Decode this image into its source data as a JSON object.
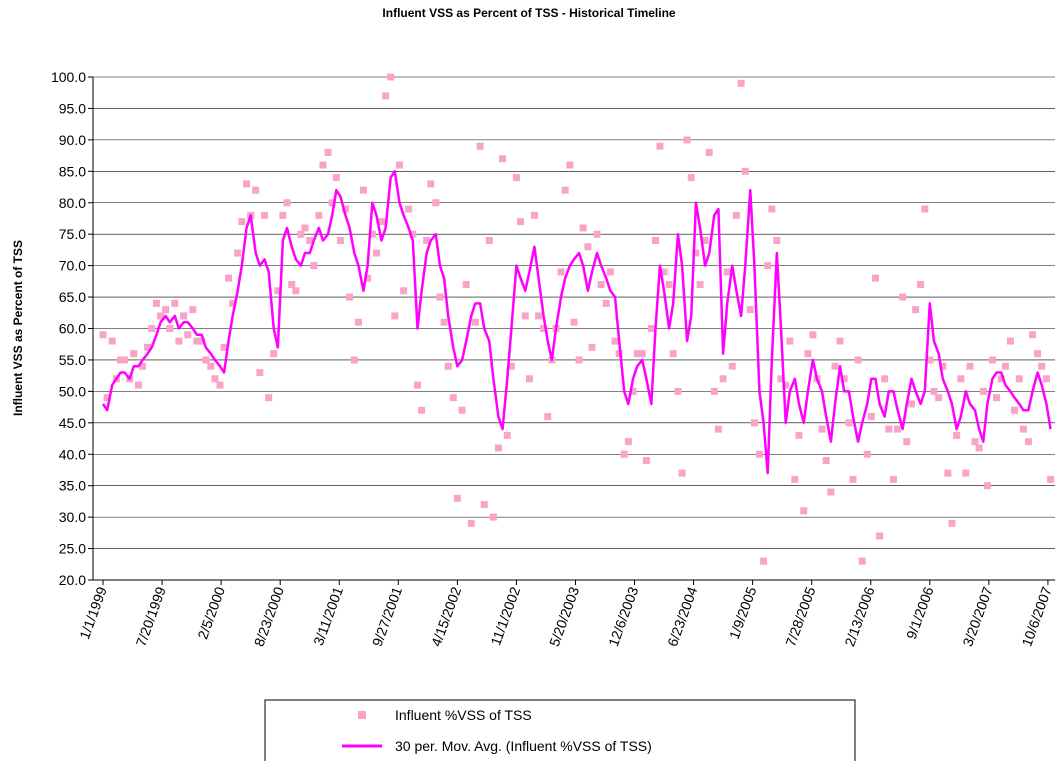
{
  "chart_data": {
    "type": "scatter",
    "title": "Influent VSS as Percent of TSS - Historical Timeline",
    "y_label": "Influent VSS as Percent of TSS",
    "grid": true,
    "legend": "bottom",
    "ylim": [
      20,
      100
    ],
    "yticks": [
      {
        "value": 20,
        "label": "20.0"
      },
      {
        "value": 25,
        "label": "25.0"
      },
      {
        "value": 30,
        "label": "30.0"
      },
      {
        "value": 35,
        "label": "35.0"
      },
      {
        "value": 40,
        "label": "40.0"
      },
      {
        "value": 45,
        "label": "45.0"
      },
      {
        "value": 50,
        "label": "50.0"
      },
      {
        "value": 55,
        "label": "55.0"
      },
      {
        "value": 60,
        "label": "60.0"
      },
      {
        "value": 65,
        "label": "65.0"
      },
      {
        "value": 70,
        "label": "70.0"
      },
      {
        "value": 75,
        "label": "75.0"
      },
      {
        "value": 80,
        "label": "80.0"
      },
      {
        "value": 85,
        "label": "85.0"
      },
      {
        "value": 90,
        "label": "90.0"
      },
      {
        "value": 95,
        "label": "95.0"
      },
      {
        "value": 100,
        "label": "100.0"
      }
    ],
    "xlim": [
      "11/28/1998",
      "10/30/2007"
    ],
    "xticks": [
      "1/1/1999",
      "7/20/1999",
      "2/5/2000",
      "8/23/2000",
      "3/11/2001",
      "9/27/2001",
      "4/15/2002",
      "11/1/2002",
      "5/20/2003",
      "12/6/2003",
      "6/23/2004",
      "1/9/2005",
      "7/28/2005",
      "2/13/2006",
      "9/1/2006",
      "3/20/2007",
      "10/6/2007"
    ],
    "x": [
      "1/1/1999",
      "1/15/1999",
      "2/1/1999",
      "2/15/1999",
      "3/1/1999",
      "3/15/1999",
      "4/1/1999",
      "4/15/1999",
      "5/1/1999",
      "5/15/1999",
      "6/1/1999",
      "6/15/1999",
      "7/1/1999",
      "7/15/1999",
      "8/1/1999",
      "8/15/1999",
      "9/1/1999",
      "9/15/1999",
      "10/1/1999",
      "10/15/1999",
      "11/1/1999",
      "11/15/1999",
      "12/1/1999",
      "12/15/1999",
      "1/1/2000",
      "1/15/2000",
      "2/1/2000",
      "2/15/2000",
      "3/1/2000",
      "3/15/2000",
      "4/1/2000",
      "4/15/2000",
      "5/1/2000",
      "5/15/2000",
      "6/1/2000",
      "6/15/2000",
      "7/1/2000",
      "7/15/2000",
      "8/1/2000",
      "8/15/2000",
      "9/1/2000",
      "9/15/2000",
      "10/1/2000",
      "10/15/2000",
      "11/1/2000",
      "11/15/2000",
      "12/1/2000",
      "12/15/2000",
      "1/1/2001",
      "1/15/2001",
      "2/1/2001",
      "2/15/2001",
      "3/1/2001",
      "3/15/2001",
      "4/1/2001",
      "4/15/2001",
      "5/1/2001",
      "5/15/2001",
      "6/1/2001",
      "6/15/2001",
      "7/1/2001",
      "7/15/2001",
      "8/1/2001",
      "8/15/2001",
      "9/1/2001",
      "9/15/2001",
      "10/1/2001",
      "10/15/2001",
      "11/1/2001",
      "11/15/2001",
      "12/1/2001",
      "12/15/2001",
      "1/1/2002",
      "1/15/2002",
      "2/1/2002",
      "2/15/2002",
      "3/1/2002",
      "3/15/2002",
      "4/1/2002",
      "4/15/2002",
      "5/1/2002",
      "5/15/2002",
      "6/1/2002",
      "6/15/2002",
      "7/1/2002",
      "7/15/2002",
      "8/1/2002",
      "8/15/2002",
      "9/1/2002",
      "9/15/2002",
      "10/1/2002",
      "10/15/2002",
      "11/1/2002",
      "11/15/2002",
      "12/1/2002",
      "12/15/2002",
      "1/1/2003",
      "1/15/2003",
      "2/1/2003",
      "2/15/2003",
      "3/1/2003",
      "3/15/2003",
      "4/1/2003",
      "4/15/2003",
      "5/1/2003",
      "5/15/2003",
      "6/1/2003",
      "6/15/2003",
      "7/1/2003",
      "7/15/2003",
      "8/1/2003",
      "8/15/2003",
      "9/1/2003",
      "9/15/2003",
      "10/1/2003",
      "10/15/2003",
      "11/1/2003",
      "11/15/2003",
      "12/1/2003",
      "12/15/2003",
      "1/1/2004",
      "1/15/2004",
      "2/1/2004",
      "2/15/2004",
      "3/1/2004",
      "3/15/2004",
      "4/1/2004",
      "4/15/2004",
      "5/1/2004",
      "5/15/2004",
      "6/1/2004",
      "6/15/2004",
      "7/1/2004",
      "7/15/2004",
      "8/1/2004",
      "8/15/2004",
      "9/1/2004",
      "9/15/2004",
      "10/1/2004",
      "10/15/2004",
      "11/1/2004",
      "11/15/2004",
      "12/1/2004",
      "12/15/2004",
      "1/1/2005",
      "1/15/2005",
      "2/1/2005",
      "2/15/2005",
      "3/1/2005",
      "3/15/2005",
      "4/1/2005",
      "4/15/2005",
      "5/1/2005",
      "5/15/2005",
      "6/1/2005",
      "6/15/2005",
      "7/1/2005",
      "7/15/2005",
      "8/1/2005",
      "8/15/2005",
      "9/1/2005",
      "9/15/2005",
      "10/1/2005",
      "10/15/2005",
      "11/1/2005",
      "11/15/2005",
      "12/1/2005",
      "12/15/2005",
      "1/1/2006",
      "1/15/2006",
      "2/1/2006",
      "2/15/2006",
      "3/1/2006",
      "3/15/2006",
      "4/1/2006",
      "4/15/2006",
      "5/1/2006",
      "5/15/2006",
      "6/1/2006",
      "6/15/2006",
      "7/1/2006",
      "7/15/2006",
      "8/1/2006",
      "8/15/2006",
      "9/1/2006",
      "9/15/2006",
      "10/1/2006",
      "10/15/2006",
      "11/1/2006",
      "11/15/2006",
      "12/1/2006",
      "12/15/2006",
      "1/1/2007",
      "1/15/2007",
      "2/1/2007",
      "2/15/2007",
      "3/1/2007",
      "3/15/2007",
      "4/1/2007",
      "4/15/2007",
      "5/1/2007",
      "5/15/2007",
      "6/1/2007",
      "6/15/2007",
      "7/1/2007",
      "7/15/2007",
      "8/1/2007",
      "8/15/2007",
      "9/1/2007",
      "9/15/2007",
      "10/1/2007",
      "10/15/2007"
    ],
    "series": [
      {
        "name": "Influent %VSS of TSS",
        "type": "scatter",
        "color": "#f9a3c8",
        "values": [
          59,
          49,
          58,
          52,
          55,
          55,
          52,
          56,
          51,
          54,
          57,
          60,
          64,
          62,
          63,
          60,
          64,
          58,
          62,
          59,
          63,
          58,
          58,
          55,
          54,
          52,
          51,
          57,
          68,
          64,
          72,
          77,
          83,
          78,
          82,
          53,
          78,
          49,
          56,
          66,
          78,
          80,
          67,
          66,
          75,
          76,
          74,
          70,
          78,
          86,
          88,
          80,
          84,
          74,
          79,
          65,
          55,
          61,
          82,
          68,
          75,
          72,
          77,
          97,
          100,
          62,
          86,
          66,
          79,
          75,
          51,
          47,
          74,
          83,
          80,
          65,
          61,
          54,
          49,
          33,
          47,
          67,
          29,
          61,
          89,
          32,
          74,
          30,
          41,
          87,
          43,
          54,
          84,
          77,
          62,
          52,
          78,
          62,
          60,
          46,
          55,
          60,
          69,
          82,
          86,
          61,
          55,
          76,
          73,
          57,
          75,
          67,
          64,
          69,
          58,
          56,
          40,
          42,
          50,
          56,
          56,
          39,
          60,
          74,
          89,
          69,
          67,
          56,
          50,
          37,
          90,
          84,
          72,
          67,
          74,
          88,
          50,
          44,
          52,
          69,
          54,
          78,
          99,
          85,
          63,
          45,
          40,
          23,
          70,
          79,
          74,
          52,
          51,
          58,
          36,
          43,
          31,
          56,
          59,
          52,
          44,
          39,
          34,
          54,
          58,
          52,
          45,
          36,
          55,
          23,
          40,
          46,
          68,
          27,
          52,
          44,
          36,
          44,
          65,
          42,
          48,
          63,
          67,
          79,
          55,
          50,
          49,
          54,
          37,
          29,
          43,
          52,
          37,
          54,
          42,
          41,
          50,
          35,
          55,
          49,
          52,
          54,
          58,
          47,
          52,
          44,
          42,
          59,
          56,
          54,
          52,
          36
        ]
      },
      {
        "name": "30 per. Mov. Avg. (Influent %VSS of TSS)",
        "type": "line",
        "color": "#ff00ff",
        "values": [
          48,
          47,
          51,
          52,
          53,
          53,
          52,
          54,
          54,
          55,
          56,
          57,
          59,
          61,
          62,
          61,
          62,
          60,
          61,
          61,
          60,
          59,
          59,
          57,
          56,
          55,
          54,
          53,
          58,
          62,
          66,
          70,
          76,
          78,
          72,
          70,
          71,
          69,
          60,
          57,
          74,
          76,
          73,
          71,
          70,
          72,
          72,
          74,
          76,
          74,
          75,
          78,
          82,
          81,
          78,
          76,
          72,
          70,
          66,
          70,
          80,
          78,
          74,
          76,
          84,
          85,
          80,
          78,
          76,
          74,
          60,
          66,
          72,
          74,
          75,
          70,
          68,
          62,
          57,
          54,
          55,
          58,
          62,
          64,
          64,
          60,
          58,
          52,
          46,
          44,
          52,
          60,
          70,
          68,
          66,
          69,
          73,
          68,
          62,
          58,
          55,
          60,
          65,
          68,
          70,
          71,
          72,
          70,
          66,
          69,
          72,
          70,
          68,
          66,
          65,
          58,
          50,
          48,
          52,
          54,
          55,
          52,
          48,
          60,
          70,
          66,
          60,
          64,
          75,
          70,
          58,
          62,
          80,
          76,
          70,
          72,
          78,
          79,
          56,
          64,
          70,
          66,
          62,
          70,
          82,
          70,
          50,
          45,
          37,
          55,
          72,
          60,
          45,
          50,
          52,
          48,
          45,
          50,
          55,
          52,
          50,
          46,
          42,
          48,
          54,
          50,
          50,
          46,
          42,
          45,
          48,
          52,
          52,
          48,
          46,
          50,
          50,
          47,
          44,
          48,
          52,
          50,
          48,
          50,
          64,
          58,
          56,
          52,
          50,
          48,
          44,
          46,
          50,
          48,
          47,
          44,
          42,
          48,
          52,
          53,
          53,
          51,
          50,
          49,
          48,
          47,
          47,
          50,
          53,
          51,
          48,
          44
        ]
      }
    ]
  }
}
